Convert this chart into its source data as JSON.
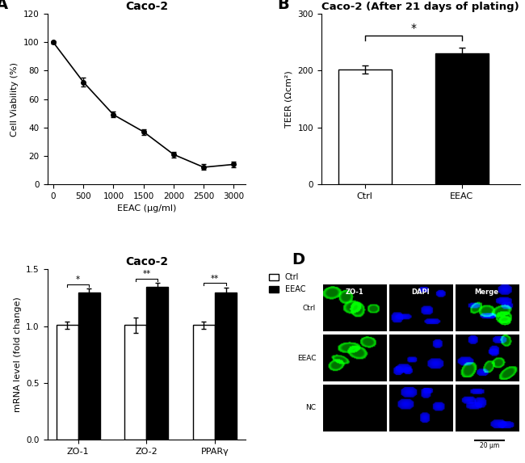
{
  "panel_A": {
    "title": "Caco-2",
    "xlabel": "EEAC (μg/ml)",
    "ylabel": "Cell Viability (%)",
    "x": [
      0,
      500,
      1000,
      1500,
      2000,
      2500,
      3000
    ],
    "y": [
      100,
      72,
      49,
      37,
      21,
      12,
      14
    ],
    "yerr": [
      1,
      3,
      2,
      2,
      2,
      2,
      2
    ],
    "ylim": [
      0,
      120
    ],
    "yticks": [
      0,
      20,
      40,
      60,
      80,
      100,
      120
    ],
    "xticks": [
      0,
      500,
      1000,
      1500,
      2000,
      2500,
      3000
    ]
  },
  "panel_B": {
    "title": "Caco-2 (After 21 days of plating)",
    "ylabel": "TEER (Ωcm²)",
    "categories": [
      "Ctrl",
      "EEAC"
    ],
    "values": [
      202,
      230
    ],
    "yerr": [
      7,
      10
    ],
    "bar_colors": [
      "white",
      "black"
    ],
    "bar_edgecolor": "black",
    "ylim": [
      0,
      300
    ],
    "yticks": [
      0,
      100,
      200,
      300
    ],
    "sig_bracket_y": 262,
    "sig_text": "*"
  },
  "panel_C": {
    "title": "Caco-2",
    "ylabel": "mRNA level (fold change)",
    "categories": [
      "ZO-1",
      "ZO-2",
      "PPARγ"
    ],
    "ctrl_values": [
      1.01,
      1.01,
      1.01
    ],
    "eeac_values": [
      1.3,
      1.35,
      1.3
    ],
    "ctrl_err": [
      0.03,
      0.07,
      0.03
    ],
    "eeac_err": [
      0.03,
      0.03,
      0.04
    ],
    "bar_colors_ctrl": "white",
    "bar_colors_eeac": "black",
    "bar_edgecolor": "black",
    "ylim": [
      0,
      1.5
    ],
    "yticks": [
      0.0,
      0.5,
      1.0,
      1.5
    ],
    "sig_texts": [
      "*",
      "**",
      "**"
    ],
    "legend_labels": [
      "Ctrl",
      "EEAC"
    ]
  },
  "panel_D": {
    "rows": [
      "Ctrl",
      "EEAC",
      "NC"
    ],
    "cols": [
      "ZO-1",
      "DAPI",
      "Merge"
    ],
    "scale_bar_text": "20 μm"
  },
  "label_fontsize": 14,
  "title_fontsize": 10,
  "axis_fontsize": 8,
  "tick_fontsize": 7.5
}
